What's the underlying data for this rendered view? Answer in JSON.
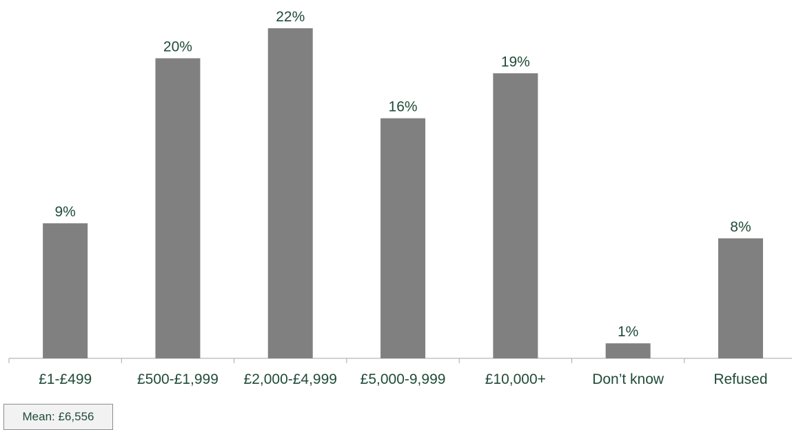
{
  "chart_data": {
    "type": "bar",
    "categories": [
      "£1-£499",
      "£500-£1,999",
      "£2,000-£4,999",
      "£5,000-9,999",
      "£10,000+",
      "Don’t know",
      "Refused"
    ],
    "values": [
      9,
      20,
      22,
      16,
      19,
      1,
      8
    ],
    "value_labels": [
      "9%",
      "20%",
      "22%",
      "16%",
      "19%",
      "1%",
      "8%"
    ],
    "unit": "%",
    "ylim": [
      0,
      22
    ],
    "grid": false,
    "legend": "none",
    "colors": {
      "bar": "#808080",
      "label": "#1f4b38",
      "axis": "#a6a6a6"
    }
  },
  "annotation": {
    "mean_label": "Mean: £6,556"
  }
}
